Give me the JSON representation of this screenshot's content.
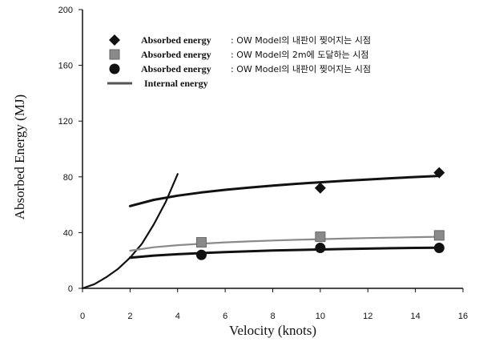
{
  "chart_data": {
    "type": "scatter",
    "xlabel": "Velocity (knots)",
    "ylabel": "Absorbed Energy (MJ)",
    "xlim": [
      0,
      16
    ],
    "ylim": [
      0,
      200
    ],
    "xticks": [
      0,
      2,
      4,
      6,
      8,
      10,
      12,
      14,
      16
    ],
    "yticks": [
      0,
      40,
      80,
      120,
      160,
      200
    ],
    "grid": false,
    "legend_position": "top",
    "series": [
      {
        "name_prefix": "Absorbed energy",
        "name_suffix": ": OW Model의 내판이 찢어지는 시점",
        "kind": "points",
        "marker": "diamond",
        "color": "#111111",
        "x": [
          10,
          15
        ],
        "y": [
          72,
          83
        ]
      },
      {
        "name_prefix": "Absorbed energy",
        "name_suffix": ": OW Model의 2m에 도달하는 시점",
        "kind": "points",
        "marker": "square",
        "color": "#8a8a8a",
        "x": [
          5,
          10,
          15
        ],
        "y": [
          33,
          37,
          38
        ]
      },
      {
        "name_prefix": "Absorbed energy",
        "name_suffix": ": OW Model의 내판이 찢어지는 시점",
        "kind": "points",
        "marker": "circle",
        "color": "#111111",
        "x": [
          5,
          10,
          15
        ],
        "y": [
          24,
          29,
          29
        ]
      },
      {
        "name_prefix": "Internal energy",
        "name_suffix": "",
        "kind": "line",
        "color": "#111111",
        "x": [
          0,
          0.5,
          1,
          1.5,
          2,
          2.5,
          3,
          3.5,
          4
        ],
        "y": [
          0,
          3,
          8,
          14,
          22,
          32,
          46,
          62,
          82
        ]
      },
      {
        "kind": "fit",
        "color": "#111111",
        "x": [
          2,
          3,
          4,
          5,
          6,
          7,
          8,
          9,
          10,
          11,
          12,
          13,
          14,
          15
        ],
        "y": [
          59,
          63.5,
          66.5,
          68.8,
          70.7,
          72.3,
          73.7,
          75,
          76.1,
          77.1,
          78.1,
          79,
          79.9,
          80.7
        ]
      },
      {
        "kind": "fit",
        "color": "#8a8a8a",
        "x": [
          2,
          3,
          4,
          5,
          6,
          7,
          8,
          9,
          10,
          11,
          12,
          13,
          14,
          15
        ],
        "y": [
          27,
          29.5,
          31,
          32,
          33,
          33.7,
          34.3,
          34.8,
          35.3,
          35.7,
          36.1,
          36.4,
          36.7,
          37
        ]
      },
      {
        "kind": "fit",
        "color": "#111111",
        "x": [
          2,
          3,
          4,
          5,
          6,
          7,
          8,
          9,
          10,
          11,
          12,
          13,
          14,
          15
        ],
        "y": [
          22,
          23.5,
          24.5,
          25.3,
          26,
          26.6,
          27.1,
          27.5,
          27.9,
          28.2,
          28.5,
          28.8,
          29,
          29.2
        ]
      }
    ]
  }
}
